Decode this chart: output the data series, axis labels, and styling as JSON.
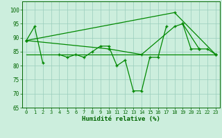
{
  "xlabel": "Humidité relative (%)",
  "background_color": "#cceedd",
  "grid_color": "#99ccbb",
  "line_color": "#008800",
  "xlim": [
    -0.5,
    23.5
  ],
  "ylim": [
    65,
    103
  ],
  "yticks": [
    65,
    70,
    75,
    80,
    85,
    90,
    95,
    100
  ],
  "xticks": [
    0,
    1,
    2,
    3,
    4,
    5,
    6,
    7,
    8,
    9,
    10,
    11,
    12,
    13,
    14,
    15,
    16,
    17,
    18,
    19,
    20,
    21,
    22,
    23
  ],
  "series_main": [
    89,
    94,
    81,
    null,
    84,
    83,
    84,
    83,
    85,
    87,
    87,
    80,
    82,
    71,
    71,
    83,
    83,
    94,
    null,
    95,
    86,
    86,
    null,
    84
  ],
  "series_flat": [
    [
      0,
      84
    ],
    [
      23,
      84
    ]
  ],
  "series_diag1": [
    [
      0,
      89
    ],
    [
      10,
      86
    ],
    [
      14,
      84
    ],
    [
      18,
      94
    ],
    [
      19,
      95
    ],
    [
      21,
      86
    ],
    [
      22,
      86
    ],
    [
      23,
      84
    ]
  ],
  "series_diag2": [
    [
      0,
      89
    ],
    [
      18,
      99
    ],
    [
      23,
      84
    ]
  ]
}
